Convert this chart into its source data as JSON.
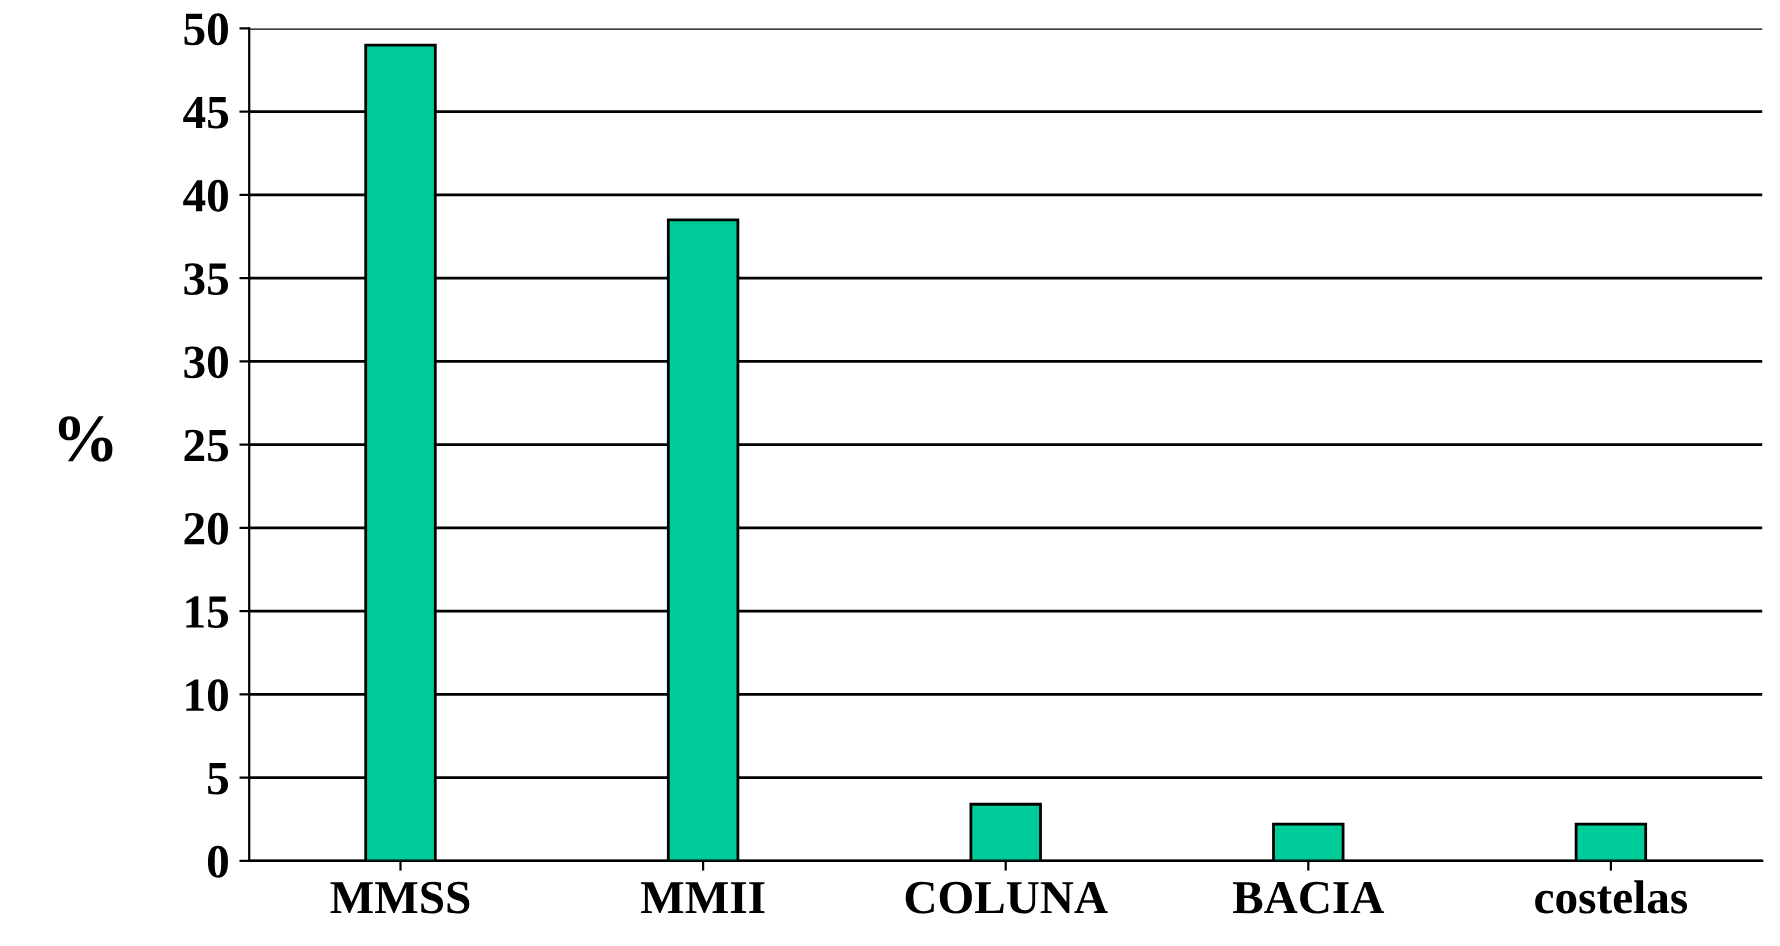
{
  "chart_data": {
    "type": "bar",
    "ylabel": "%",
    "categories": [
      "MMSS",
      "MMII",
      "COLUNA",
      "BACIA",
      "costelas"
    ],
    "values": [
      49,
      38.5,
      3.4,
      2.2,
      2.2
    ],
    "color": "#00cc99",
    "ylim": [
      0,
      50
    ],
    "yticks": [
      0,
      5,
      10,
      15,
      20,
      25,
      30,
      35,
      40,
      45,
      50
    ],
    "grid": "y"
  }
}
